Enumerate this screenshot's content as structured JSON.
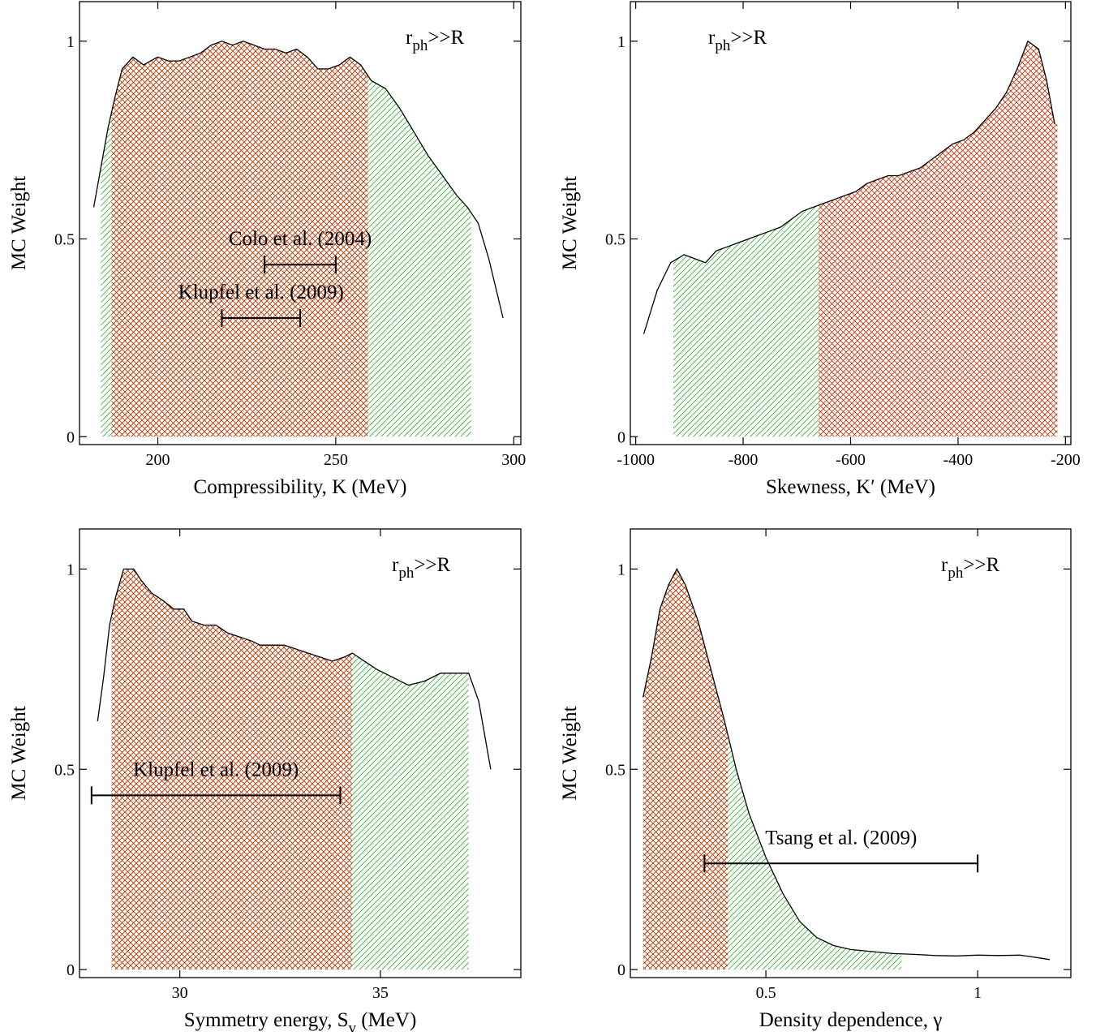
{
  "chart_data": [
    {
      "type": "area",
      "xlabel": "Compressibility, K (MeV)",
      "ylabel": "MC Weight",
      "label_main": "r",
      "label_sub": "ph",
      "label_tail": ">>R",
      "xlim": [
        178,
        302
      ],
      "ylim": [
        -0.02,
        1.1
      ],
      "xticks": [
        200,
        250,
        300
      ],
      "xticklabels": [
        "200",
        "250",
        "300"
      ],
      "yticks": [
        0,
        0.5,
        1
      ],
      "yticklabels": [
        "0",
        "0.5",
        "1"
      ],
      "x": [
        182,
        184,
        186,
        188,
        190,
        193,
        196,
        198,
        200,
        203,
        206,
        209,
        212,
        215,
        218,
        221,
        224,
        227,
        230,
        233,
        236,
        239,
        242,
        245,
        248,
        251,
        254,
        257,
        260,
        264,
        268,
        272,
        276,
        280,
        284,
        287,
        290,
        293,
        297
      ],
      "y": [
        0.58,
        0.68,
        0.78,
        0.86,
        0.93,
        0.96,
        0.94,
        0.95,
        0.96,
        0.95,
        0.95,
        0.96,
        0.97,
        0.99,
        1.0,
        0.99,
        1.0,
        0.99,
        0.98,
        0.98,
        0.97,
        0.98,
        0.96,
        0.93,
        0.93,
        0.94,
        0.96,
        0.94,
        0.9,
        0.88,
        0.83,
        0.77,
        0.71,
        0.66,
        0.61,
        0.58,
        0.54,
        0.45,
        0.3
      ],
      "regions": [
        {
          "pattern": "green",
          "range": [
            184,
            288
          ]
        },
        {
          "pattern": "red",
          "range": [
            187,
            259
          ]
        }
      ],
      "errorbars": [
        {
          "label": "Colo et al. (2004)",
          "y": 0.435,
          "range": [
            230,
            250
          ]
        },
        {
          "label": "Klupfel et al. (2009)",
          "y": 0.3,
          "range": [
            218,
            240
          ]
        }
      ]
    },
    {
      "type": "area",
      "xlabel": "Skewness, K′ (MeV)",
      "ylabel": "MC Weight",
      "label_main": "r",
      "label_sub": "ph",
      "label_tail": ">>R",
      "xlim": [
        -1010,
        -190
      ],
      "ylim": [
        -0.02,
        1.1
      ],
      "xticks": [
        -1000,
        -800,
        -600,
        -400,
        -200
      ],
      "xticklabels": [
        "-1000",
        "-800",
        "-600",
        "-400",
        "-200"
      ],
      "yticks": [
        0,
        0.5,
        1
      ],
      "yticklabels": [
        "0",
        "0.5",
        "1"
      ],
      "x": [
        -985,
        -960,
        -935,
        -910,
        -890,
        -870,
        -850,
        -830,
        -810,
        -790,
        -770,
        -750,
        -730,
        -710,
        -690,
        -670,
        -650,
        -630,
        -610,
        -590,
        -570,
        -550,
        -530,
        -510,
        -490,
        -470,
        -450,
        -430,
        -410,
        -390,
        -370,
        -350,
        -330,
        -310,
        -290,
        -270,
        -250,
        -235,
        -220
      ],
      "y": [
        0.26,
        0.37,
        0.44,
        0.46,
        0.45,
        0.44,
        0.47,
        0.48,
        0.49,
        0.5,
        0.51,
        0.52,
        0.53,
        0.55,
        0.57,
        0.58,
        0.59,
        0.6,
        0.61,
        0.62,
        0.64,
        0.65,
        0.66,
        0.66,
        0.67,
        0.68,
        0.7,
        0.72,
        0.74,
        0.75,
        0.77,
        0.8,
        0.83,
        0.87,
        0.93,
        1.0,
        0.98,
        0.9,
        0.79
      ],
      "regions": [
        {
          "pattern": "green",
          "range": [
            -930,
            -660
          ]
        },
        {
          "pattern": "red",
          "range": [
            -660,
            -215
          ]
        }
      ],
      "errorbars": []
    },
    {
      "type": "area",
      "xlabel_main": "Symmetry energy, S",
      "xlabel_sub": "v",
      "xlabel_tail": " (MeV)",
      "ylabel": "MC Weight",
      "label_main": "r",
      "label_sub": "ph",
      "label_tail": ">>R",
      "xlim": [
        27.5,
        38.5
      ],
      "ylim": [
        -0.02,
        1.1
      ],
      "xticks": [
        30,
        35
      ],
      "xticklabels": [
        "30",
        "35"
      ],
      "yticks": [
        0,
        0.5,
        1
      ],
      "yticklabels": [
        "0",
        "0.5",
        "1"
      ],
      "x": [
        27.95,
        28.1,
        28.25,
        28.4,
        28.6,
        28.85,
        29.05,
        29.3,
        29.6,
        29.85,
        30.1,
        30.3,
        30.6,
        30.9,
        31.2,
        31.5,
        31.8,
        32.0,
        32.3,
        32.6,
        32.9,
        33.2,
        33.5,
        33.8,
        34.1,
        34.3,
        34.6,
        34.9,
        35.3,
        35.7,
        36.1,
        36.5,
        36.9,
        37.2,
        37.45,
        37.75
      ],
      "y": [
        0.62,
        0.73,
        0.86,
        0.93,
        1.0,
        1.0,
        0.97,
        0.94,
        0.92,
        0.9,
        0.9,
        0.87,
        0.86,
        0.86,
        0.84,
        0.83,
        0.82,
        0.81,
        0.81,
        0.81,
        0.8,
        0.79,
        0.78,
        0.77,
        0.78,
        0.79,
        0.77,
        0.75,
        0.73,
        0.71,
        0.72,
        0.74,
        0.74,
        0.74,
        0.67,
        0.5
      ],
      "regions": [
        {
          "pattern": "green",
          "range": [
            28.3,
            37.2
          ]
        },
        {
          "pattern": "red",
          "range": [
            28.3,
            34.3
          ]
        }
      ],
      "errorbars": [
        {
          "label": "Klupfel et al. (2009)",
          "y": 0.435,
          "range": [
            27.8,
            34.0
          ]
        }
      ]
    },
    {
      "type": "area",
      "xlabel": "Density dependence, γ",
      "ylabel": "MC Weight",
      "label_main": "r",
      "label_sub": "ph",
      "label_tail": ">>R",
      "xlim": [
        0.18,
        1.22
      ],
      "ylim": [
        -0.02,
        1.1
      ],
      "xticks": [
        0.5,
        1
      ],
      "xticklabels": [
        "0.5",
        "1"
      ],
      "yticks": [
        0,
        0.5,
        1
      ],
      "yticklabels": [
        "0",
        "0.5",
        "1"
      ],
      "x": [
        0.21,
        0.23,
        0.25,
        0.27,
        0.29,
        0.31,
        0.34,
        0.37,
        0.4,
        0.43,
        0.46,
        0.5,
        0.54,
        0.58,
        0.62,
        0.66,
        0.7,
        0.75,
        0.8,
        0.85,
        0.9,
        0.95,
        1.0,
        1.05,
        1.1,
        1.14,
        1.17
      ],
      "y": [
        0.68,
        0.78,
        0.9,
        0.96,
        1.0,
        0.96,
        0.87,
        0.75,
        0.63,
        0.5,
        0.39,
        0.28,
        0.19,
        0.12,
        0.08,
        0.06,
        0.05,
        0.045,
        0.04,
        0.038,
        0.035,
        0.034,
        0.036,
        0.035,
        0.036,
        0.03,
        0.025
      ],
      "regions": [
        {
          "pattern": "green",
          "range": [
            0.21,
            0.82
          ]
        },
        {
          "pattern": "red",
          "range": [
            0.21,
            0.41
          ]
        }
      ],
      "errorbars": [
        {
          "label": "Tsang et al. (2009)",
          "y": 0.265,
          "range": [
            0.355,
            1.0
          ]
        }
      ]
    }
  ]
}
